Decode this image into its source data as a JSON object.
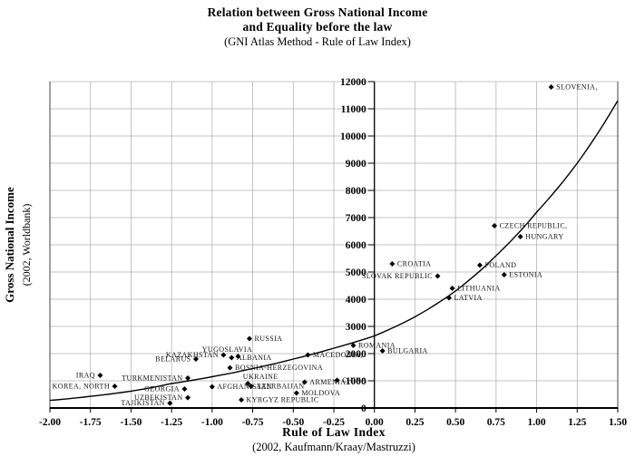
{
  "chart_data": {
    "type": "scatter",
    "title_line1": "Relation between Gross National Income",
    "title_line2": "and Equality before the law",
    "subtitle": "(GNI Atlas Method - Rule of Law Index)",
    "xlabel": "Rule of Law Index",
    "xlabel_source": "(2002, Kaufmann/Kraay/Mastruzzi)",
    "ylabel": "Gross National Income",
    "ylabel_source": "(2002, Worldbank)",
    "xlim": [
      -2.0,
      1.5
    ],
    "ylim": [
      0,
      12000
    ],
    "grid": true,
    "x_tick_labels": [
      "-2.00",
      "-1.75",
      "-1.50",
      "-1.25",
      "-1.00",
      "-0.75",
      "-0.50",
      "-0.25",
      "0.00",
      "0.25",
      "0.50",
      "0.75",
      "1.00",
      "1.25",
      "1.50"
    ],
    "x_tick_values": [
      -2.0,
      -1.75,
      -1.5,
      -1.25,
      -1.0,
      -0.75,
      -0.5,
      -0.25,
      0,
      0.25,
      0.5,
      0.75,
      1.0,
      1.25,
      1.5
    ],
    "y_tick_labels": [
      "0",
      "1000",
      "2000",
      "3000",
      "4000",
      "5000",
      "6000",
      "7000",
      "8000",
      "9000",
      "10000",
      "11000",
      "12000"
    ],
    "y_tick_values": [
      0,
      1000,
      2000,
      3000,
      4000,
      5000,
      6000,
      7000,
      8000,
      9000,
      10000,
      11000,
      12000
    ],
    "points": [
      {
        "label": "SLOVENIA,",
        "x": 1.09,
        "y": 11800,
        "side": "right"
      },
      {
        "label": "CZECH REPUBLIC,",
        "x": 0.74,
        "y": 6700,
        "side": "right"
      },
      {
        "label": "HUNGARY",
        "x": 0.9,
        "y": 6300,
        "side": "right"
      },
      {
        "label": "POLAND",
        "x": 0.65,
        "y": 5250,
        "side": "right"
      },
      {
        "label": "ESTONIA",
        "x": 0.8,
        "y": 4900,
        "side": "right"
      },
      {
        "label": "LITHUANIA",
        "x": 0.48,
        "y": 4400,
        "side": "right"
      },
      {
        "label": "LATVIA",
        "x": 0.46,
        "y": 4050,
        "side": "right"
      },
      {
        "label": "CROATIA",
        "x": 0.11,
        "y": 5300,
        "side": "right"
      },
      {
        "label": "SLOVAK REPUBLIC",
        "x": 0.39,
        "y": 4850,
        "side": "left"
      },
      {
        "label": "RUSSIA",
        "x": -0.77,
        "y": 2550,
        "side": "right"
      },
      {
        "label": "YUGOSLAVIA",
        "x": -0.84,
        "y": 1900,
        "side": "above",
        "dx": -12
      },
      {
        "label": "KAZAKHSTAN",
        "x": -0.93,
        "y": 1950,
        "side": "left"
      },
      {
        "label": "ALBANIA",
        "x": -0.88,
        "y": 1850,
        "side": "right"
      },
      {
        "label": "BELARUS",
        "x": -1.1,
        "y": 1800,
        "side": "left"
      },
      {
        "label": "BOSNIA-HERZEGOVINA",
        "x": -0.89,
        "y": 1480,
        "side": "right"
      },
      {
        "label": "MACEDONIA,",
        "x": -0.41,
        "y": 1950,
        "side": "right"
      },
      {
        "label": "ROMANIA",
        "x": -0.13,
        "y": 2300,
        "side": "right"
      },
      {
        "label": "BULGARIA",
        "x": 0.05,
        "y": 2100,
        "side": "right"
      },
      {
        "label": "UKRAINE",
        "x": -0.78,
        "y": 900,
        "side": "above",
        "dx": 14
      },
      {
        "label": "AFGHANISTAN",
        "x": -1.0,
        "y": 780,
        "side": "right"
      },
      {
        "label": "AZERBAIJAN",
        "x": -0.76,
        "y": 800,
        "side": "right"
      },
      {
        "label": "ARMENIA",
        "x": -0.43,
        "y": 950,
        "side": "right"
      },
      {
        "label": "CHINA",
        "x": -0.23,
        "y": 1020,
        "side": "right"
      },
      {
        "label": "MOLDOVA",
        "x": -0.48,
        "y": 550,
        "side": "right"
      },
      {
        "label": "KYRGYZ REPUBLIC",
        "x": -0.82,
        "y": 300,
        "side": "right"
      },
      {
        "label": "IRAQ",
        "x": -1.69,
        "y": 1200,
        "side": "left"
      },
      {
        "label": "KOREA, NORTH",
        "x": -1.6,
        "y": 800,
        "side": "left"
      },
      {
        "label": "TURKMENISTAN",
        "x": -1.15,
        "y": 1100,
        "side": "left"
      },
      {
        "label": "GEORGIA",
        "x": -1.17,
        "y": 700,
        "side": "left"
      },
      {
        "label": "UZBEKISTAN",
        "x": -1.15,
        "y": 380,
        "side": "left"
      },
      {
        "label": "TAJIKISTAN",
        "x": -1.26,
        "y": 180,
        "side": "left"
      }
    ],
    "trend": {
      "type": "exponential",
      "samples": [
        {
          "x": -2.0,
          "y": 280
        },
        {
          "x": -1.75,
          "y": 430
        },
        {
          "x": -1.5,
          "y": 620
        },
        {
          "x": -1.25,
          "y": 900
        },
        {
          "x": -1.0,
          "y": 1150
        },
        {
          "x": -0.75,
          "y": 1450
        },
        {
          "x": -0.5,
          "y": 1800
        },
        {
          "x": -0.25,
          "y": 2200
        },
        {
          "x": 0.0,
          "y": 2650
        },
        {
          "x": 0.25,
          "y": 3350
        },
        {
          "x": 0.5,
          "y": 4300
        },
        {
          "x": 0.75,
          "y": 5600
        },
        {
          "x": 1.0,
          "y": 7200
        },
        {
          "x": 1.25,
          "y": 9000
        },
        {
          "x": 1.5,
          "y": 11300
        }
      ]
    },
    "colors": {
      "marker": "#000000",
      "trend_line": "#000000",
      "gridline": "#b0b0b0",
      "axis": "#000000",
      "plot_border": "#444444"
    }
  }
}
